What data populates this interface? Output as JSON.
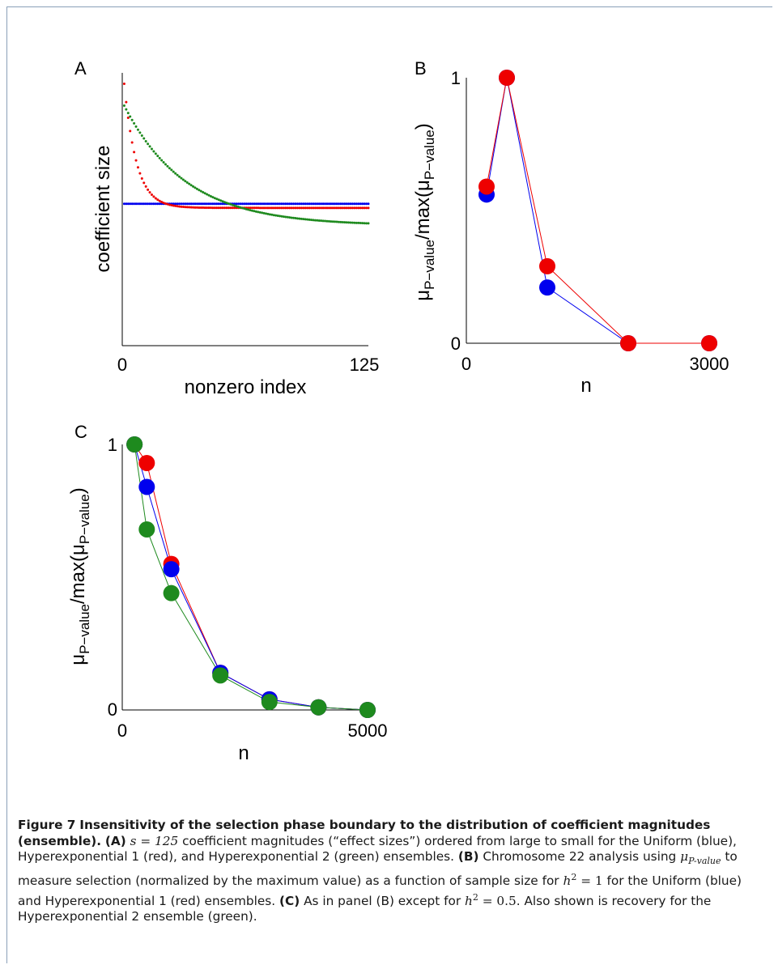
{
  "colors": {
    "blue": "#0000ee",
    "red": "#ee0000",
    "green": "#1e8a1e"
  },
  "panels": {
    "A": {
      "label": "A",
      "xlabel": "nonzero index",
      "ylabel": "coefficient size",
      "xticks": [
        "0",
        "125"
      ]
    },
    "B": {
      "label": "B",
      "xlabel": "n",
      "ylabel_main": "μ",
      "ylabel_sub": "P−value",
      "ylabel_mid": "/max(μ",
      "ylabel_sub2": "P−value",
      "ylabel_end": ")",
      "xticks": [
        "0",
        "3000"
      ],
      "yticks": [
        "0",
        "1"
      ]
    },
    "C": {
      "label": "C",
      "xlabel": "n",
      "ylabel_main": "μ",
      "ylabel_sub": "P−value",
      "ylabel_mid": "/max(μ",
      "ylabel_sub2": "P−value",
      "ylabel_end": ")",
      "xticks": [
        "0",
        "5000"
      ],
      "yticks": [
        "0",
        "1"
      ]
    }
  },
  "chart_data": [
    {
      "panel": "A",
      "type": "scatter",
      "xlabel": "nonzero index",
      "ylabel": "coefficient size",
      "xlim": [
        0,
        125
      ],
      "ylim": [
        0,
        1
      ],
      "series": [
        {
          "color": "blue",
          "model": "constant",
          "level": 0.52
        },
        {
          "color": "red",
          "model": "decay",
          "start": 0.96,
          "end": 0.505,
          "rate": 0.16
        },
        {
          "color": "green",
          "model": "decay",
          "start": 0.88,
          "end": 0.44,
          "rate": 0.032
        }
      ]
    },
    {
      "panel": "B",
      "type": "line",
      "xlabel": "n",
      "xlim": [
        0,
        3000
      ],
      "ylim": [
        0,
        1
      ],
      "series": [
        {
          "color": "blue",
          "x": [
            250,
            500,
            1000,
            2000,
            3000
          ],
          "y": [
            0.56,
            1.0,
            0.21,
            0.0,
            0.0
          ]
        },
        {
          "color": "red",
          "x": [
            250,
            500,
            1000,
            2000,
            3000
          ],
          "y": [
            0.59,
            1.0,
            0.29,
            0.0,
            0.0
          ]
        }
      ]
    },
    {
      "panel": "C",
      "type": "line",
      "xlabel": "n",
      "xlim": [
        0,
        5000
      ],
      "ylim": [
        0,
        1
      ],
      "series": [
        {
          "color": "red",
          "x": [
            250,
            500,
            1000,
            2000,
            3000,
            4000,
            5000
          ],
          "y": [
            1.0,
            0.93,
            0.55,
            0.14,
            0.04,
            0.01,
            0.0
          ]
        },
        {
          "color": "blue",
          "x": [
            250,
            500,
            1000,
            2000,
            3000,
            4000,
            5000
          ],
          "y": [
            1.0,
            0.84,
            0.53,
            0.14,
            0.04,
            0.01,
            0.0
          ]
        },
        {
          "color": "green",
          "x": [
            250,
            500,
            1000,
            2000,
            3000,
            4000,
            5000
          ],
          "y": [
            1.0,
            0.68,
            0.44,
            0.13,
            0.03,
            0.01,
            0.0
          ]
        }
      ]
    }
  ],
  "caption": {
    "fig_label": "Figure 7",
    "title": "Insensitivity of the selection phase boundary to the distribution of coefficient magnitudes (ensemble).",
    "a_tag": "(A)",
    "a_text_1": " coefficient magnitudes (“effect sizes”) ordered from large to small for the Uniform (blue), Hyperexponential 1 (red), and Hyperexponential 2 (green) ensembles. ",
    "a_math": "s = 125",
    "b_tag": "(B)",
    "b_text_1": " Chromosome 22 analysis using ",
    "b_text_2": " to measure selection (normalized by the maximum value) as a function of sample size for ",
    "b_text_3": " for the Uniform (blue) and Hyperexponential 1 (red) ensembles. ",
    "b_math_mu": "μ",
    "b_math_sub": "P-value",
    "b_math_h": "h",
    "b_math_h_rest": " = 1",
    "c_tag": "(C)",
    "c_text_1": " As in panel (B) except for ",
    "c_math_h": "h",
    "c_math_h_rest": " = 0.5",
    "c_text_2": ". Also shown is recovery for the Hyperexponential 2 ensemble (green).",
    "sq": "2"
  }
}
